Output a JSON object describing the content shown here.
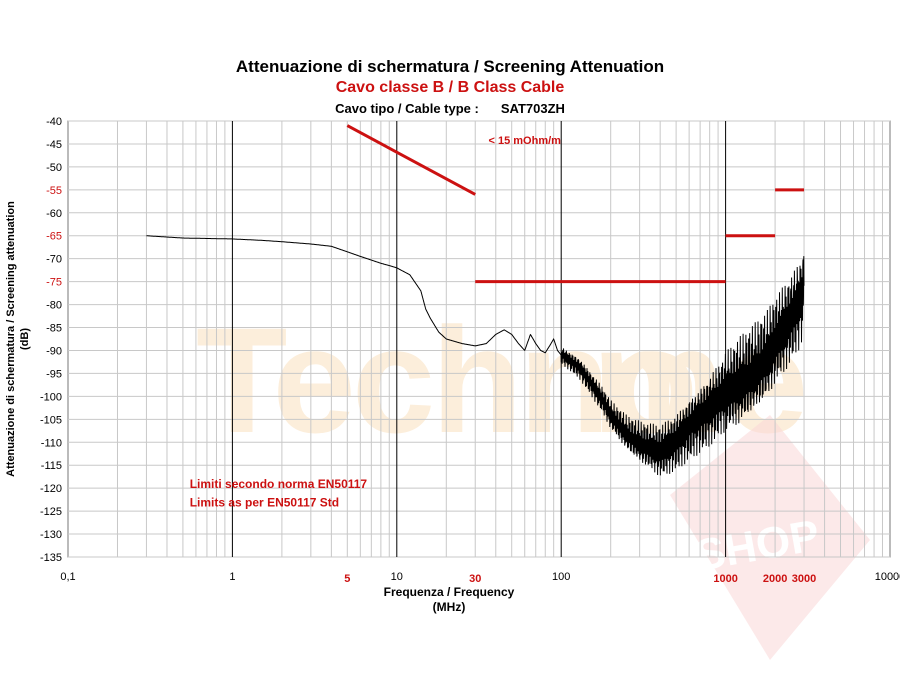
{
  "title": "Attenuazione di schermatura / Screening Attenuation",
  "subtitle": "Cavo classe B / B Class Cable",
  "cable_type_label": "Cavo tipo / Cable type :",
  "cable_type_value": "SAT703ZH",
  "watermark": "Technohome SHOP",
  "colors": {
    "accent": "#cc1111",
    "grid": "#c8c8c8",
    "decade_grid": "#000000",
    "trace": "#000000"
  },
  "chart_data": {
    "type": "line",
    "title": "Attenuazione di schermatura / Screening Attenuation",
    "xlabel": "Frequenza / Frequency",
    "xlabel_unit": "(MHz)",
    "ylabel": "Attenuazione di schermatura / Screening attenuation",
    "ylabel_unit": "(dB)",
    "x_scale": "log",
    "xlim": [
      0.1,
      10000
    ],
    "ylim": [
      -135,
      -40
    ],
    "grid": true,
    "x_ticks": [
      "0,1",
      "1",
      "10",
      "100",
      "1000",
      "10000"
    ],
    "x_red_ticks": [
      {
        "value": 5,
        "label": "5"
      },
      {
        "value": 30,
        "label": "30"
      },
      {
        "value": 1000,
        "label": "1000"
      },
      {
        "value": 2000,
        "label": "2000"
      },
      {
        "value": 3000,
        "label": "3000"
      }
    ],
    "y_ticks": [
      -40,
      -45,
      -50,
      -55,
      -60,
      -65,
      -70,
      -75,
      -80,
      -85,
      -90,
      -95,
      -100,
      -105,
      -110,
      -115,
      -120,
      -125,
      -130,
      -135
    ],
    "y_red_ticks": [
      -55,
      -65,
      -75
    ],
    "limits": [
      {
        "x": [
          5,
          30
        ],
        "y": [
          -41,
          -56
        ]
      },
      {
        "x": [
          30,
          1000
        ],
        "y": [
          -75,
          -75
        ]
      },
      {
        "x": [
          1000,
          2000
        ],
        "y": [
          -65,
          -65
        ]
      },
      {
        "x": [
          2000,
          3000
        ],
        "y": [
          -55,
          -55
        ]
      }
    ],
    "annotations": [
      {
        "text": "< 15 mOhm/m",
        "x": 60,
        "y": -45
      },
      {
        "text": "Limiti secondo norma EN50117",
        "x": 0.55,
        "y": -120
      },
      {
        "text": "Limits as per EN50117 Std",
        "x": 0.55,
        "y": -124
      }
    ],
    "series": [
      {
        "x": [
          0.3,
          0.5,
          1,
          1.5,
          2,
          3,
          4,
          5,
          6,
          7,
          8,
          9,
          10,
          12,
          14,
          15,
          16,
          18,
          20,
          25,
          30,
          35,
          40,
          45,
          50,
          55,
          60,
          65,
          70,
          75,
          80,
          85,
          90,
          95,
          100,
          110,
          130,
          150,
          180,
          200,
          250,
          300,
          400,
          500,
          600,
          700,
          800,
          900,
          1000,
          1200,
          1500,
          1800,
          2000,
          2200,
          2500,
          2800,
          3000
        ],
        "y": [
          -65,
          -65.5,
          -65.7,
          -66,
          -66.3,
          -66.8,
          -67.3,
          -68.5,
          -69.5,
          -70.3,
          -71,
          -71.5,
          -72,
          -73.5,
          -77,
          -81,
          -83,
          -86,
          -87.5,
          -88.5,
          -89,
          -88.5,
          -86.5,
          -85.5,
          -86.5,
          -88.5,
          -90,
          -86.5,
          -88.5,
          -90,
          -90.5,
          -89,
          -87.5,
          -90,
          -91,
          -92,
          -94,
          -97,
          -101,
          -104,
          -108,
          -110,
          -112,
          -110,
          -107,
          -105,
          -103,
          -101,
          -99,
          -97,
          -94,
          -91,
          -88,
          -86,
          -83,
          -80,
          -77
        ]
      }
    ]
  }
}
